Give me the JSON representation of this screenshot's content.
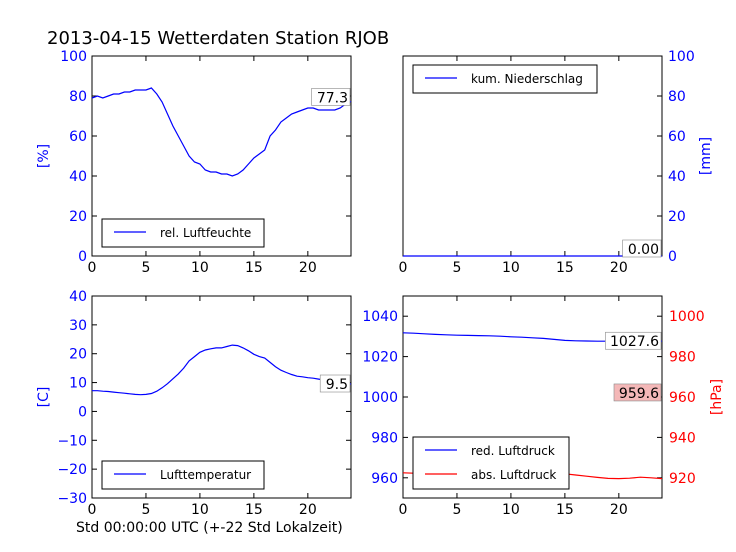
{
  "figure_title": "2013-04-15 Wetterdaten Station RJOB",
  "x_axis_label": "Std 00:00:00 UTC (+-22 Std Lokalzeit)",
  "colors": {
    "blue": "#0000ff",
    "red": "#ff0000",
    "axis": "#000000",
    "hpa_box": "#f4b8b8"
  },
  "chart_data": [
    {
      "type": "line",
      "panel": "humidity",
      "xlim": [
        0,
        24
      ],
      "ylim": [
        0,
        100
      ],
      "xticks": [
        "0",
        "5",
        "10",
        "15",
        "20"
      ],
      "yticks": [
        "0",
        "20",
        "40",
        "60",
        "80",
        "100"
      ],
      "ylabel": "[%]",
      "legend_placement": "lower-left",
      "series": [
        {
          "name": "rel. Luftfeuchte",
          "color": "#0000ff",
          "x": [
            0,
            0.5,
            1,
            1.5,
            2,
            2.5,
            3,
            3.5,
            4,
            4.5,
            5,
            5.5,
            6,
            6.5,
            7,
            7.5,
            8,
            8.5,
            9,
            9.5,
            10,
            10.5,
            11,
            11.5,
            12,
            12.5,
            13,
            13.5,
            14,
            14.5,
            15,
            15.5,
            16,
            16.5,
            17,
            17.5,
            18,
            18.5,
            19,
            19.5,
            20,
            20.5,
            21,
            21.5,
            22,
            22.5,
            23,
            23.5,
            24
          ],
          "y": [
            79,
            80,
            79,
            80,
            81,
            81,
            82,
            82,
            83,
            83,
            83,
            84,
            81,
            77,
            71,
            65,
            60,
            55,
            50,
            47,
            46,
            43,
            42,
            42,
            41,
            41,
            40,
            41,
            43,
            46,
            49,
            51,
            53,
            60,
            63,
            67,
            69,
            71,
            72,
            73,
            74,
            74,
            73,
            73,
            73,
            73,
            74,
            76,
            77.3
          ]
        }
      ],
      "annotation": "77.3"
    },
    {
      "type": "line",
      "panel": "precipitation",
      "xlim": [
        0,
        24
      ],
      "ylim": [
        0,
        100
      ],
      "xticks": [
        "0",
        "5",
        "10",
        "15",
        "20"
      ],
      "yticks": [
        "0",
        "20",
        "40",
        "60",
        "80",
        "100"
      ],
      "ylabel": "[mm]",
      "legend_placement": "upper-left",
      "series": [
        {
          "name": "kum. Niederschlag",
          "color": "#0000ff",
          "x": [
            0,
            24
          ],
          "y": [
            0,
            0
          ]
        }
      ],
      "annotation": "0.00"
    },
    {
      "type": "line",
      "panel": "temperature",
      "xlim": [
        0,
        24
      ],
      "ylim": [
        -30,
        40
      ],
      "xticks": [
        "0",
        "5",
        "10",
        "15",
        "20"
      ],
      "yticks": [
        "−30",
        "−20",
        "−10",
        "0",
        "10",
        "20",
        "30",
        "40"
      ],
      "ylabel": "[C]",
      "legend_placement": "lower-left",
      "series": [
        {
          "name": "Lufttemperatur",
          "color": "#0000ff",
          "x": [
            0,
            0.5,
            1,
            1.5,
            2,
            2.5,
            3,
            3.5,
            4,
            4.5,
            5,
            5.5,
            6,
            6.5,
            7,
            7.5,
            8,
            8.5,
            9,
            9.5,
            10,
            10.5,
            11,
            11.5,
            12,
            12.5,
            13,
            13.5,
            14,
            14.5,
            15,
            15.5,
            16,
            16.5,
            17,
            17.5,
            18,
            18.5,
            19,
            19.5,
            20,
            20.5,
            21,
            21.5,
            22,
            22.5,
            23,
            23.5,
            24
          ],
          "y": [
            7.2,
            7.2,
            7,
            6.9,
            6.7,
            6.5,
            6.3,
            6.1,
            5.9,
            5.8,
            5.9,
            6.2,
            7,
            8.2,
            9.6,
            11.3,
            13,
            15,
            17.5,
            19,
            20.5,
            21.3,
            21.7,
            22,
            22,
            22.5,
            23,
            22.8,
            22,
            21,
            19.8,
            19,
            18.5,
            17,
            15.5,
            14.3,
            13.5,
            12.8,
            12.2,
            12,
            11.7,
            11.5,
            11.2,
            10.9,
            10.5,
            10.1,
            9.8,
            9.6,
            9.5
          ]
        }
      ],
      "annotation": "9.5"
    },
    {
      "type": "line",
      "panel": "pressure",
      "xlim": [
        0,
        24
      ],
      "ylim": [
        950,
        1050
      ],
      "xticks": [
        "0",
        "5",
        "10",
        "15",
        "20"
      ],
      "yticks": [
        "960",
        "980",
        "1000",
        "1020",
        "1040"
      ],
      "right_ylim": [
        910,
        1010
      ],
      "right_yticks": [
        "920",
        "940",
        "960",
        "980",
        "1000"
      ],
      "right_ylabel": "[hPa]",
      "legend_placement": "lower-left",
      "series": [
        {
          "name": "red. Luftdruck",
          "color": "#0000ff",
          "x": [
            0,
            1,
            2,
            3,
            4,
            5,
            6,
            7,
            8,
            9,
            10,
            11,
            12,
            13,
            14,
            15,
            16,
            17,
            18,
            19,
            20,
            21,
            22,
            23,
            24
          ],
          "y": [
            1031.8,
            1031.6,
            1031.3,
            1031,
            1030.8,
            1030.6,
            1030.5,
            1030.4,
            1030.3,
            1030.1,
            1029.8,
            1029.6,
            1029.3,
            1029,
            1028.5,
            1028,
            1027.8,
            1027.7,
            1027.6,
            1027.6,
            1027.7,
            1027.8,
            1027.9,
            1027.8,
            1027.6
          ]
        },
        {
          "name": "abs. Luftdruck",
          "color": "#ff0000",
          "x": [
            0,
            1,
            2,
            3,
            4,
            5,
            6,
            7,
            8,
            9,
            10,
            11,
            12,
            13,
            14,
            15,
            16,
            17,
            18,
            19,
            20,
            21,
            22,
            23,
            24
          ],
          "y": [
            962.5,
            962.3,
            961.8,
            961.5,
            961.4,
            961.4,
            961.5,
            961.7,
            962.2,
            962.7,
            963.2,
            963.5,
            963.5,
            963.2,
            962.7,
            962,
            961.4,
            960.8,
            960.2,
            959.7,
            959.6,
            959.8,
            960.3,
            960,
            959.6
          ]
        }
      ],
      "annotation_blue": "1027.6",
      "annotation_red": "959.6"
    }
  ]
}
